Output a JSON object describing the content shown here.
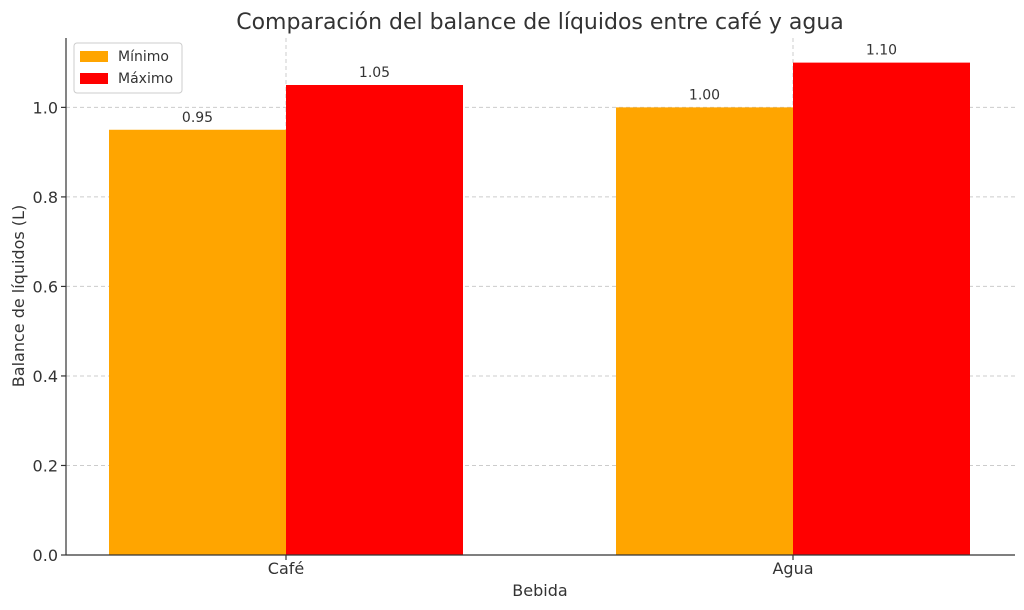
{
  "chart_data": {
    "type": "bar",
    "title": "Comparación del balance de líquidos entre café y agua",
    "xlabel": "Bebida",
    "ylabel": "Balance de líquidos (L)",
    "categories": [
      "Café",
      "Agua"
    ],
    "series": [
      {
        "name": "Mínimo",
        "values": [
          0.95,
          1.0
        ],
        "color": "#FFA500"
      },
      {
        "name": "Máximo",
        "values": [
          1.05,
          1.1
        ],
        "color": "#FF0000"
      }
    ],
    "data_labels": [
      [
        "0.95",
        "1.00"
      ],
      [
        "1.05",
        "1.10"
      ]
    ],
    "ylim": [
      0,
      1.155
    ],
    "yticks": [
      "0.0",
      "0.2",
      "0.4",
      "0.6",
      "0.8",
      "1.0"
    ],
    "grid": true,
    "legend_position": "top-left"
  }
}
